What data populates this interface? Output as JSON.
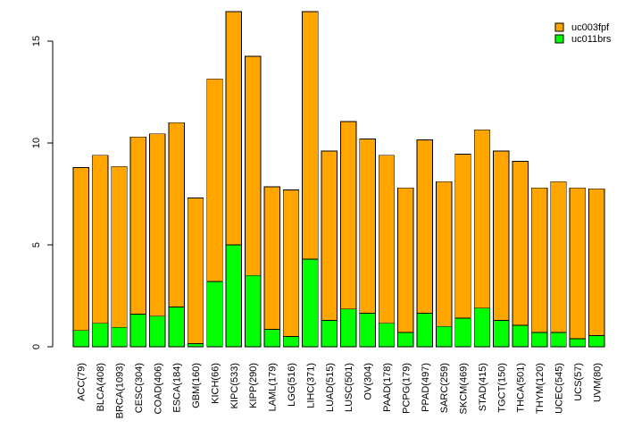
{
  "chart_data": {
    "type": "bar",
    "stacked": true,
    "categories": [
      "ACC(79)",
      "BLCA(408)",
      "BRCA(1093)",
      "CESC(304)",
      "COAD(406)",
      "ESCA(184)",
      "GBM(160)",
      "KICH(66)",
      "KIPC(533)",
      "KIPP(290)",
      "LAML(179)",
      "LGG(516)",
      "LIHC(371)",
      "LUAD(515)",
      "LUSC(501)",
      "OV(304)",
      "PAAD(178)",
      "PCPG(179)",
      "PPAD(497)",
      "SARC(259)",
      "SKCM(469)",
      "STAD(415)",
      "TGCT(150)",
      "THCA(501)",
      "THYM(120)",
      "UCEC(545)",
      "UCS(57)",
      "UVM(80)"
    ],
    "series": [
      {
        "name": "uc011brs",
        "color": "#00ff00",
        "values": [
          0.8,
          1.15,
          0.95,
          1.6,
          1.5,
          1.95,
          0.15,
          3.2,
          5.0,
          3.5,
          0.85,
          0.5,
          4.3,
          1.3,
          1.85,
          1.65,
          1.15,
          0.7,
          1.65,
          1.0,
          1.4,
          1.9,
          1.3,
          1.05,
          0.7,
          0.7,
          0.4,
          0.55
        ]
      },
      {
        "name": "uc003fpf",
        "color": "#ffa500",
        "values": [
          8.0,
          8.25,
          7.9,
          8.7,
          8.95,
          9.05,
          7.15,
          9.95,
          11.45,
          10.75,
          7.0,
          7.2,
          12.15,
          8.3,
          9.2,
          8.55,
          8.25,
          7.1,
          8.5,
          7.1,
          8.05,
          8.75,
          8.3,
          8.05,
          7.1,
          7.4,
          7.4,
          7.2
        ]
      }
    ],
    "title": "",
    "xlabel": "",
    "ylabel": "",
    "ylim": [
      0,
      16.4
    ],
    "yticks": [
      "0",
      "5",
      "10",
      "15"
    ],
    "grid": false,
    "legend_position": "top-right",
    "legend_order": [
      "uc003fpf",
      "uc011brs"
    ]
  }
}
